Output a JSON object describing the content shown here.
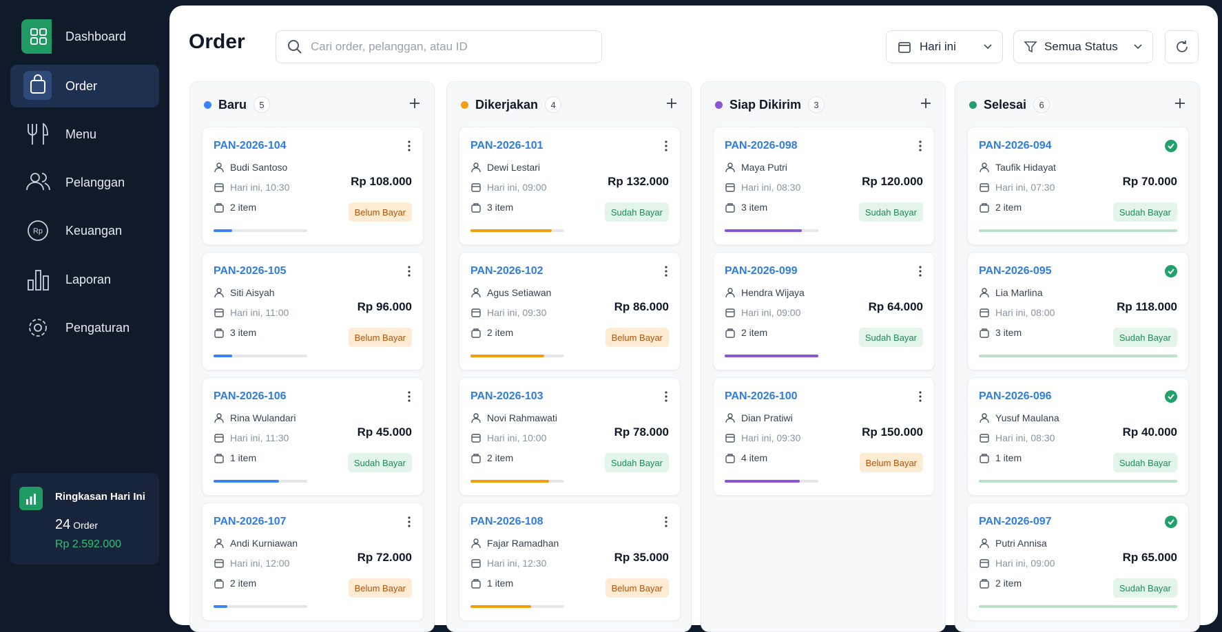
{
  "sidebar": {
    "menu": [
      "Dashboard",
      "Order",
      "Menu",
      "Pelanggan",
      "Keuangan",
      "Laporan",
      "Pengaturan"
    ],
    "summary": {
      "title": "Ringkasan Hari Ini",
      "count": 24,
      "count_unit": "Order",
      "revenue": "Rp 2.592.000"
    }
  },
  "header": {
    "title": "Order",
    "search_placeholder": "Cari order, pelanggan, atau ID",
    "date_filter": "Hari ini",
    "status_filter": "Semua Status"
  },
  "columns": [
    {
      "name": "Baru",
      "color": "#3b82f6",
      "count": 5,
      "completed": false,
      "cards": [
        {
          "id": "PAN-2026-104",
          "customer": "Budi Santoso",
          "time": "Hari ini, 10:30",
          "items": "2 item",
          "total": "Rp 108.000",
          "payment": {
            "label": "Belum Bayar",
            "paid": false
          },
          "progress": 20
        },
        {
          "id": "PAN-2026-105",
          "customer": "Siti Aisyah",
          "time": "Hari ini, 11:00",
          "items": "3 item",
          "total": "Rp 96.000",
          "payment": {
            "label": "Belum Bayar",
            "paid": false
          },
          "progress": 20
        },
        {
          "id": "PAN-2026-106",
          "customer": "Rina Wulandari",
          "time": "Hari ini, 11:30",
          "items": "1 item",
          "total": "Rp 45.000",
          "payment": {
            "label": "Sudah Bayar",
            "paid": true
          },
          "progress": 70
        },
        {
          "id": "PAN-2026-107",
          "customer": "Andi Kurniawan",
          "time": "Hari ini, 12:00",
          "items": "2 item",
          "total": "Rp 72.000",
          "payment": {
            "label": "Belum Bayar",
            "paid": false
          },
          "progress": 15
        }
      ]
    },
    {
      "name": "Dikerjakan",
      "color": "#f59e0b",
      "count": 4,
      "completed": false,
      "cards": [
        {
          "id": "PAN-2026-101",
          "customer": "Dewi Lestari",
          "time": "Hari ini, 09:00",
          "items": "3 item",
          "total": "Rp 132.000",
          "payment": {
            "label": "Sudah Bayar",
            "paid": true
          },
          "progress": 87
        },
        {
          "id": "PAN-2026-102",
          "customer": "Agus Setiawan",
          "time": "Hari ini, 09:30",
          "items": "2 item",
          "total": "Rp 86.000",
          "payment": {
            "label": "Belum Bayar",
            "paid": false
          },
          "progress": 79
        },
        {
          "id": "PAN-2026-103",
          "customer": "Novi Rahmawati",
          "time": "Hari ini, 10:00",
          "items": "2 item",
          "total": "Rp 78.000",
          "payment": {
            "label": "Sudah Bayar",
            "paid": true
          },
          "progress": 84
        },
        {
          "id": "PAN-2026-108",
          "customer": "Fajar Ramadhan",
          "time": "Hari ini, 12:30",
          "items": "1 item",
          "total": "Rp 35.000",
          "payment": {
            "label": "Belum Bayar",
            "paid": false
          },
          "progress": 65
        }
      ]
    },
    {
      "name": "Siap Dikirim",
      "color": "#8b55d6",
      "count": 3,
      "completed": false,
      "cards": [
        {
          "id": "PAN-2026-098",
          "customer": "Maya Putri",
          "time": "Hari ini, 08:30",
          "items": "3 item",
          "total": "Rp 120.000",
          "payment": {
            "label": "Sudah Bayar",
            "paid": true
          },
          "progress": 82
        },
        {
          "id": "PAN-2026-099",
          "customer": "Hendra Wijaya",
          "time": "Hari ini, 09:00",
          "items": "2 item",
          "total": "Rp 64.000",
          "payment": {
            "label": "Sudah Bayar",
            "paid": true
          },
          "progress": 100
        },
        {
          "id": "PAN-2026-100",
          "customer": "Dian Pratiwi",
          "time": "Hari ini, 09:30",
          "items": "4 item",
          "total": "Rp 150.000",
          "payment": {
            "label": "Belum Bayar",
            "paid": false
          },
          "progress": 80
        }
      ]
    },
    {
      "name": "Selesai",
      "color": "#22a06b",
      "count": 6,
      "completed": true,
      "cards": [
        {
          "id": "PAN-2026-094",
          "customer": "Taufik Hidayat",
          "time": "Hari ini, 07:30",
          "items": "2 item",
          "total": "Rp 70.000",
          "payment": {
            "label": "Sudah Bayar",
            "paid": true
          },
          "progress": 100
        },
        {
          "id": "PAN-2026-095",
          "customer": "Lia Marlina",
          "time": "Hari ini, 08:00",
          "items": "3 item",
          "total": "Rp 118.000",
          "payment": {
            "label": "Sudah Bayar",
            "paid": true
          },
          "progress": 100
        },
        {
          "id": "PAN-2026-096",
          "customer": "Yusuf Maulana",
          "time": "Hari ini, 08:30",
          "items": "1 item",
          "total": "Rp 40.000",
          "payment": {
            "label": "Sudah Bayar",
            "paid": true
          },
          "progress": 100
        },
        {
          "id": "PAN-2026-097",
          "customer": "Putri Annisa",
          "time": "Hari ini, 09:00",
          "items": "2 item",
          "total": "Rp 65.000",
          "payment": {
            "label": "Sudah Bayar",
            "paid": true
          },
          "progress": 100
        }
      ]
    }
  ]
}
